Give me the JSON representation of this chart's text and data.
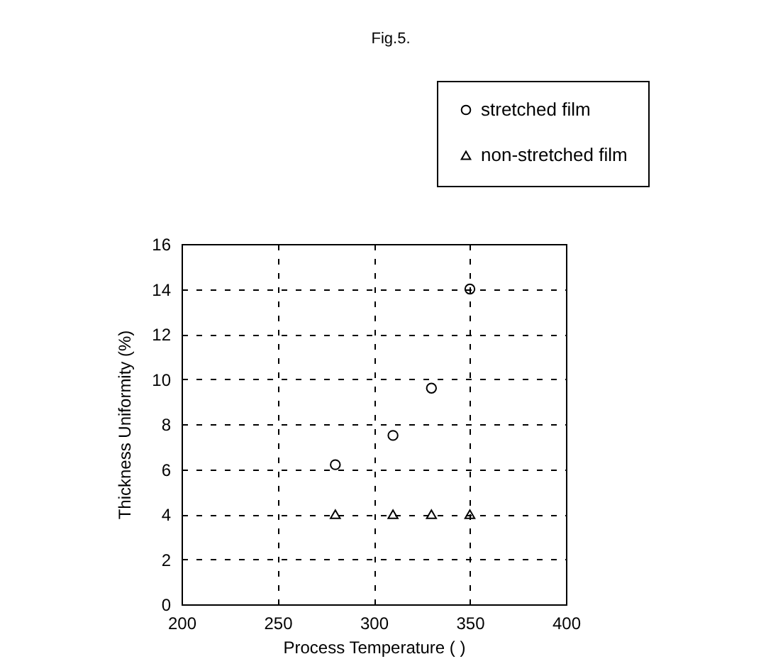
{
  "chart_data": {
    "type": "scatter",
    "title": "Fig.5.",
    "xlabel": "Process  Temperature    (     )",
    "ylabel": "Thickness  Uniformity  (%)",
    "xlim": [
      200,
      400
    ],
    "xticks": [
      200,
      250,
      300,
      350,
      400
    ],
    "ylim": [
      0,
      16
    ],
    "yticks": [
      0,
      2,
      4,
      6,
      8,
      10,
      12,
      14,
      16
    ],
    "grid": true,
    "line_style": "dashed",
    "legend": "top right",
    "series": [
      {
        "name": "stretched film",
        "color": "#000000",
        "marker": "circle",
        "x": [
          280,
          310,
          330,
          350
        ],
        "values": [
          6.2,
          7.5,
          9.6,
          14
        ]
      },
      {
        "name": "non-stretched film",
        "color": "#000000",
        "marker": "triangle",
        "x": [
          280,
          310,
          330,
          350
        ],
        "values": [
          4,
          4,
          4,
          4
        ]
      }
    ]
  }
}
